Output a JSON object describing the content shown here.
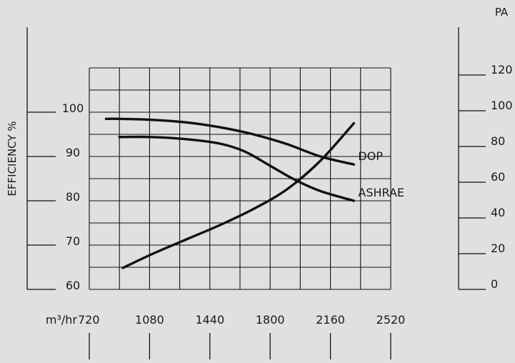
{
  "chart_data": {
    "type": "line",
    "title": "",
    "xlabel": "m³/hr",
    "x_ticks": [
      720,
      1080,
      1440,
      1800,
      2160,
      2520
    ],
    "xlim": [
      720,
      2520
    ],
    "left_axis": {
      "label": "EFFICIENCY %",
      "ticks": [
        60,
        70,
        80,
        90,
        100
      ],
      "ylim": [
        60,
        100
      ]
    },
    "right_axis": {
      "label": "PA",
      "ticks": [
        0,
        20,
        40,
        60,
        80,
        100,
        120
      ],
      "ylim": [
        0,
        120
      ]
    },
    "grid": true,
    "background_color": "#dfe0e2",
    "line_color": "#111111",
    "series": [
      {
        "name": "DOP",
        "axis": "left",
        "x": [
          820,
          900,
          1080,
          1300,
          1500,
          1700,
          1900,
          2100,
          2300
        ],
        "y": [
          98.5,
          98.5,
          98.3,
          97.7,
          96.6,
          95.0,
          92.8,
          90.0,
          88.2
        ]
      },
      {
        "name": "ASHRAE",
        "axis": "left",
        "x": [
          900,
          1080,
          1300,
          1500,
          1650,
          1800,
          1950,
          2100,
          2300
        ],
        "y": [
          94.4,
          94.4,
          93.9,
          92.9,
          91.1,
          87.9,
          84.7,
          82.2,
          80.0
        ]
      },
      {
        "name": "",
        "axis": "right",
        "x": [
          920,
          1100,
          1300,
          1500,
          1700,
          1900,
          2100,
          2300
        ],
        "y": [
          12,
          20,
          28,
          36,
          45,
          56,
          72,
          93
        ]
      }
    ]
  }
}
